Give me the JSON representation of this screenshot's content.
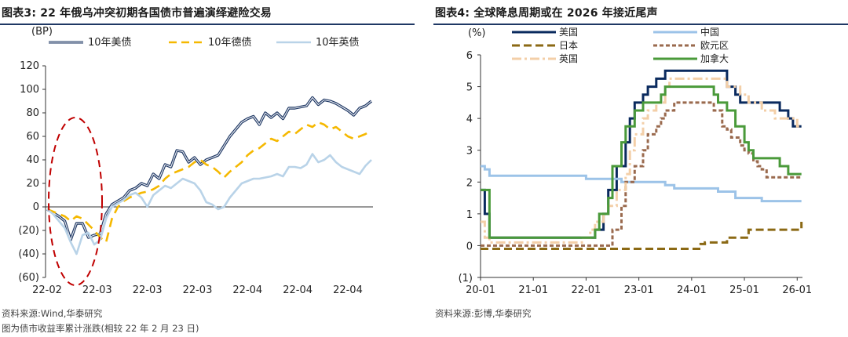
{
  "left": {
    "title": "图表3:  22 年俄乌冲突初期各国债市普遍演绎避险交易",
    "source": "资料来源:Wind,华泰研究",
    "note": "图为债市收益率累计涨跌(相较 22 年 2 月 23 日)"
  },
  "right": {
    "title": "图表4:  全球降息周期或在 2026 年接近尾声",
    "source": "资料来源:彭博,华泰研究"
  },
  "colors": {
    "navy": "#1f3864",
    "gold": "#f5b800",
    "lightblue": "#b9d3e8",
    "us2": "#0a2a5e",
    "cn": "#9cc3e8",
    "jp": "#8b6914",
    "eu": "#9a6a4e",
    "uk": "#f3cfa8",
    "ca": "#4a9a3a",
    "ellipse": "#c00000"
  },
  "chart_data": [
    {
      "type": "line",
      "ylabel": "(BP)",
      "ylim": [
        -60,
        120
      ],
      "yticks": [
        "120",
        "100",
        "80",
        "60",
        "40",
        "20",
        "0",
        "(20)",
        "(40)",
        "(60)"
      ],
      "xticks": [
        "22-02",
        "22-03",
        "22-03",
        "22-03",
        "22-04",
        "22-04",
        "22-04"
      ],
      "legend_position": "top",
      "x": [
        0,
        1,
        2,
        3,
        4,
        5,
        6,
        7,
        8,
        9,
        10,
        11,
        12,
        13,
        14,
        15,
        16,
        17,
        18,
        19,
        20,
        21,
        22,
        23,
        24,
        25,
        26,
        27,
        28,
        29,
        30,
        31,
        32,
        33,
        34,
        35,
        36,
        37,
        38,
        39,
        40,
        41,
        42,
        43,
        44,
        45,
        46,
        47,
        48,
        49,
        50,
        51,
        52,
        53,
        54,
        55
      ],
      "series": [
        {
          "name": "10年美债",
          "color": "#1f3864",
          "values": [
            -2,
            -5,
            -8,
            -12,
            -28,
            -14,
            -14,
            -26,
            -24,
            -23,
            -6,
            2,
            5,
            8,
            14,
            16,
            20,
            18,
            28,
            24,
            36,
            34,
            48,
            47,
            38,
            42,
            36,
            40,
            42,
            44,
            52,
            60,
            66,
            72,
            75,
            77,
            70,
            80,
            76,
            80,
            75,
            84,
            84,
            85,
            86,
            93,
            87,
            91,
            90,
            88,
            85,
            82,
            78,
            84,
            86,
            90
          ]
        },
        {
          "name": "10年德债",
          "color": "#f5b800",
          "values": [
            -2,
            -4,
            -6,
            -8,
            -12,
            -8,
            -10,
            -15,
            -20,
            -26,
            -30,
            -10,
            0,
            5,
            8,
            10,
            12,
            13,
            15,
            18,
            24,
            28,
            30,
            32,
            34,
            38,
            40,
            36,
            34,
            30,
            25,
            30,
            34,
            38,
            44,
            48,
            50,
            54,
            58,
            56,
            60,
            64,
            62,
            66,
            70,
            68,
            72,
            70,
            66,
            68,
            64,
            60,
            58,
            60,
            62,
            65
          ]
        },
        {
          "name": "10年英债",
          "color": "#b9d3e8",
          "values": [
            -2,
            -6,
            -12,
            -18,
            -30,
            -40,
            -24,
            -22,
            -32,
            -28,
            -10,
            0,
            3,
            6,
            10,
            12,
            8,
            0,
            10,
            14,
            18,
            16,
            20,
            24,
            22,
            20,
            14,
            4,
            2,
            -2,
            0,
            8,
            14,
            20,
            22,
            24,
            24,
            25,
            26,
            28,
            26,
            34,
            34,
            33,
            36,
            45,
            38,
            40,
            44,
            38,
            34,
            32,
            30,
            28,
            35,
            40
          ]
        }
      ]
    },
    {
      "type": "line",
      "ylabel": "(%)",
      "ylim": [
        -1,
        6
      ],
      "yticks": [
        "6",
        "5",
        "4",
        "3",
        "2",
        "1",
        "0",
        "(1)"
      ],
      "xticks": [
        "20-01",
        "21-01",
        "22-01",
        "23-01",
        "24-01",
        "25-01",
        "26-01"
      ],
      "x": [
        2020.0,
        2020.08,
        2020.17,
        2020.25,
        2020.33,
        2020.42,
        2020.5,
        2020.58,
        2020.67,
        2020.75,
        2020.83,
        2020.92,
        2021.0,
        2021.08,
        2021.17,
        2021.25,
        2021.33,
        2021.42,
        2021.5,
        2021.58,
        2021.67,
        2021.75,
        2021.83,
        2021.92,
        2022.0,
        2022.08,
        2022.17,
        2022.25,
        2022.33,
        2022.42,
        2022.5,
        2022.58,
        2022.67,
        2022.75,
        2022.83,
        2022.92,
        2023.0,
        2023.08,
        2023.17,
        2023.25,
        2023.33,
        2023.42,
        2023.5,
        2023.58,
        2023.67,
        2023.75,
        2023.83,
        2023.92,
        2024.0,
        2024.08,
        2024.17,
        2024.25,
        2024.33,
        2024.42,
        2024.5,
        2024.58,
        2024.67,
        2024.75,
        2024.83,
        2024.92,
        2025.0,
        2025.08,
        2025.17,
        2025.25,
        2025.33,
        2025.42,
        2025.5,
        2025.58,
        2025.67,
        2025.75,
        2025.83,
        2025.92,
        2026.0,
        2026.08
      ],
      "legend_position": "top",
      "series": [
        {
          "name": "美国",
          "color": "#0a2a5e",
          "dash": "solid",
          "values": [
            1.75,
            1.0,
            0.25,
            0.25,
            0.25,
            0.25,
            0.25,
            0.25,
            0.25,
            0.25,
            0.25,
            0.25,
            0.25,
            0.25,
            0.25,
            0.25,
            0.25,
            0.25,
            0.25,
            0.25,
            0.25,
            0.25,
            0.25,
            0.25,
            0.25,
            0.25,
            0.5,
            0.5,
            1.0,
            1.75,
            1.75,
            2.5,
            2.5,
            3.25,
            4.0,
            4.5,
            4.5,
            4.75,
            5.0,
            5.0,
            5.25,
            5.25,
            5.5,
            5.5,
            5.5,
            5.5,
            5.5,
            5.5,
            5.5,
            5.5,
            5.5,
            5.5,
            5.5,
            5.5,
            5.5,
            5.5,
            5.0,
            5.0,
            4.75,
            4.5,
            4.5,
            4.5,
            4.5,
            4.5,
            4.5,
            4.5,
            4.5,
            4.5,
            4.25,
            4.25,
            4.0,
            3.75,
            3.75,
            3.75
          ]
        },
        {
          "name": "中国",
          "color": "#9cc3e8",
          "dash": "solid",
          "values": [
            2.5,
            2.4,
            2.2,
            2.2,
            2.2,
            2.2,
            2.2,
            2.2,
            2.2,
            2.2,
            2.2,
            2.2,
            2.2,
            2.2,
            2.2,
            2.2,
            2.2,
            2.2,
            2.2,
            2.2,
            2.2,
            2.2,
            2.2,
            2.2,
            2.1,
            2.1,
            2.1,
            2.1,
            2.1,
            2.1,
            2.1,
            2.1,
            2.0,
            2.0,
            2.0,
            2.0,
            2.0,
            2.0,
            2.0,
            2.0,
            2.0,
            2.0,
            1.9,
            1.9,
            1.8,
            1.8,
            1.8,
            1.8,
            1.8,
            1.8,
            1.8,
            1.8,
            1.8,
            1.8,
            1.7,
            1.7,
            1.7,
            1.7,
            1.5,
            1.5,
            1.5,
            1.5,
            1.5,
            1.5,
            1.4,
            1.4,
            1.4,
            1.4,
            1.4,
            1.4,
            1.4,
            1.4,
            1.4,
            1.4
          ]
        },
        {
          "name": "日本",
          "color": "#8b6914",
          "dash": "dash",
          "values": [
            -0.1,
            -0.1,
            -0.1,
            -0.1,
            -0.1,
            -0.1,
            -0.1,
            -0.1,
            -0.1,
            -0.1,
            -0.1,
            -0.1,
            -0.1,
            -0.1,
            -0.1,
            -0.1,
            -0.1,
            -0.1,
            -0.1,
            -0.1,
            -0.1,
            -0.1,
            -0.1,
            -0.1,
            -0.1,
            -0.1,
            -0.1,
            -0.1,
            -0.1,
            -0.1,
            -0.1,
            -0.1,
            -0.1,
            -0.1,
            -0.1,
            -0.1,
            -0.1,
            -0.1,
            -0.1,
            -0.1,
            -0.1,
            -0.1,
            -0.1,
            -0.1,
            -0.1,
            -0.1,
            -0.1,
            -0.1,
            -0.1,
            -0.1,
            0.05,
            0.1,
            0.1,
            0.1,
            0.1,
            0.1,
            0.25,
            0.25,
            0.25,
            0.25,
            0.25,
            0.5,
            0.5,
            0.5,
            0.5,
            0.5,
            0.5,
            0.5,
            0.5,
            0.5,
            0.5,
            0.5,
            0.5,
            0.75
          ]
        },
        {
          "name": "欧元区",
          "color": "#9a6a4e",
          "dash": "dot",
          "values": [
            0.0,
            0.0,
            0.0,
            0.0,
            0.0,
            0.0,
            0.0,
            0.0,
            0.0,
            0.0,
            0.0,
            0.0,
            0.0,
            0.0,
            0.0,
            0.0,
            0.0,
            0.0,
            0.0,
            0.0,
            0.0,
            0.0,
            0.0,
            0.0,
            0.0,
            0.0,
            0.0,
            0.0,
            0.0,
            0.0,
            0.5,
            0.5,
            1.25,
            2.0,
            2.0,
            2.5,
            2.5,
            3.0,
            3.5,
            3.5,
            3.75,
            4.0,
            4.25,
            4.25,
            4.5,
            4.5,
            4.5,
            4.5,
            4.5,
            4.5,
            4.5,
            4.5,
            4.5,
            4.25,
            4.25,
            3.75,
            3.65,
            3.4,
            3.4,
            3.15,
            3.0,
            2.9,
            2.65,
            2.5,
            2.4,
            2.15,
            2.15,
            2.15,
            2.15,
            2.15,
            2.15,
            2.15,
            2.15,
            2.15
          ]
        },
        {
          "name": "英国",
          "color": "#f3cfa8",
          "dash": "dashdot",
          "values": [
            0.75,
            0.25,
            0.1,
            0.1,
            0.1,
            0.1,
            0.1,
            0.1,
            0.1,
            0.1,
            0.1,
            0.1,
            0.1,
            0.1,
            0.1,
            0.1,
            0.1,
            0.1,
            0.1,
            0.1,
            0.1,
            0.1,
            0.1,
            0.25,
            0.25,
            0.5,
            0.75,
            0.75,
            1.0,
            1.25,
            1.25,
            1.75,
            1.75,
            2.25,
            3.0,
            3.5,
            3.5,
            4.0,
            4.25,
            4.25,
            4.5,
            4.5,
            5.0,
            5.25,
            5.25,
            5.25,
            5.25,
            5.25,
            5.25,
            5.25,
            5.25,
            5.25,
            5.25,
            5.25,
            5.25,
            5.25,
            5.0,
            5.0,
            5.0,
            4.75,
            4.75,
            4.5,
            4.5,
            4.5,
            4.25,
            4.25,
            4.25,
            4.0,
            4.0,
            4.0,
            4.0,
            4.0,
            3.75,
            3.75
          ]
        },
        {
          "name": "加拿大",
          "color": "#4a9a3a",
          "dash": "solid",
          "values": [
            1.75,
            1.75,
            0.25,
            0.25,
            0.25,
            0.25,
            0.25,
            0.25,
            0.25,
            0.25,
            0.25,
            0.25,
            0.25,
            0.25,
            0.25,
            0.25,
            0.25,
            0.25,
            0.25,
            0.25,
            0.25,
            0.25,
            0.25,
            0.25,
            0.25,
            0.25,
            0.5,
            1.0,
            1.0,
            1.5,
            2.5,
            2.5,
            3.25,
            3.75,
            3.75,
            4.25,
            4.25,
            4.5,
            4.5,
            4.5,
            4.5,
            4.75,
            5.0,
            5.0,
            5.0,
            5.0,
            5.0,
            5.0,
            5.0,
            5.0,
            5.0,
            5.0,
            5.0,
            4.75,
            4.5,
            4.5,
            4.25,
            4.25,
            3.75,
            3.75,
            3.25,
            3.0,
            2.75,
            2.75,
            2.75,
            2.75,
            2.75,
            2.75,
            2.5,
            2.5,
            2.25,
            2.25,
            2.25,
            2.25
          ]
        }
      ]
    }
  ]
}
